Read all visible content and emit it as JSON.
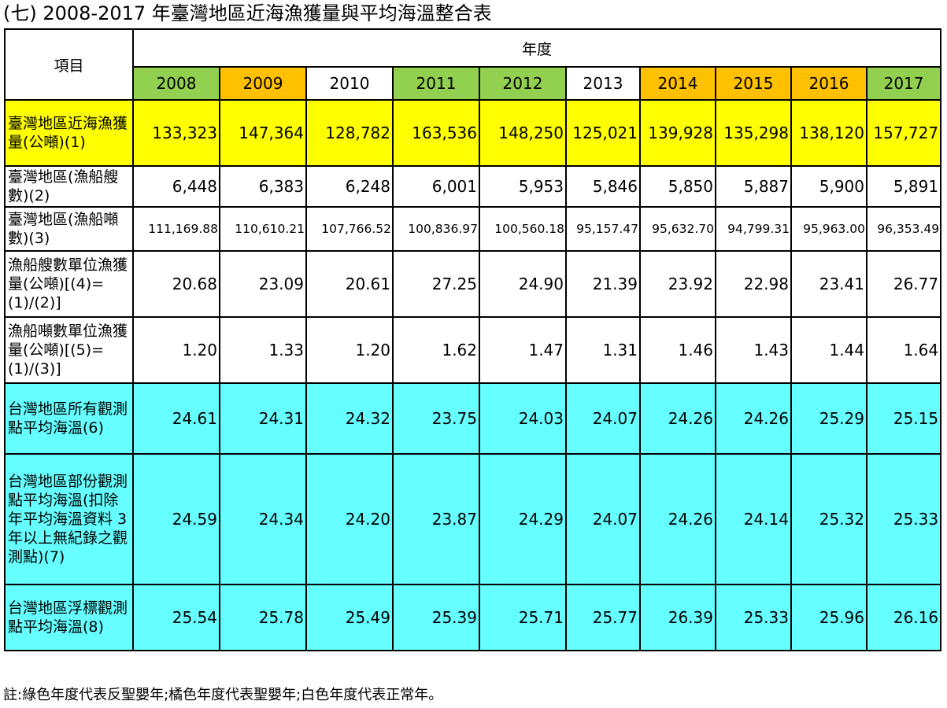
{
  "title": "(七) 2008-2017 年臺灣地區近海漁獲量與平均海溫整合表",
  "header": {
    "item": "項目",
    "year_group": "年度"
  },
  "years": [
    {
      "label": "2008",
      "color": "#92d050"
    },
    {
      "label": "2009",
      "color": "#ffc000"
    },
    {
      "label": "2010",
      "color": "#ffffff"
    },
    {
      "label": "2011",
      "color": "#92d050"
    },
    {
      "label": "2012",
      "color": "#92d050"
    },
    {
      "label": "2013",
      "color": "#ffffff"
    },
    {
      "label": "2014",
      "color": "#ffc000"
    },
    {
      "label": "2015",
      "color": "#ffc000"
    },
    {
      "label": "2016",
      "color": "#ffc000"
    },
    {
      "label": "2017",
      "color": "#92d050"
    }
  ],
  "rows": [
    {
      "label": "臺灣地區近海漁獲量(公噸)(1)",
      "fill": "#ffff00",
      "values": [
        "133,323",
        "147,364",
        "128,782",
        "163,536",
        "148,250",
        "125,021",
        "139,928",
        "135,298",
        "138,120",
        "157,727"
      ]
    },
    {
      "label": "臺灣地區(漁船艘數)(2)",
      "fill": "#ffffff",
      "values": [
        "6,448",
        "6,383",
        "6,248",
        "6,001",
        "5,953",
        "5,846",
        "5,850",
        "5,887",
        "5,900",
        "5,891"
      ]
    },
    {
      "label": "臺灣地區(漁船噸數)(3)",
      "fill": "#ffffff",
      "values": [
        "111,169.88",
        "110,610.21",
        "107,766.52",
        "100,836.97",
        "100,560.18",
        "95,157.47",
        "95,632.70",
        "94,799.31",
        "95,963.00",
        "96,353.49"
      ]
    },
    {
      "label": "漁船艘數單位漁獲量(公噸)[(4)=(1)/(2)]",
      "fill": "#ffffff",
      "values": [
        "20.68",
        "23.09",
        "20.61",
        "27.25",
        "24.90",
        "21.39",
        "23.92",
        "22.98",
        "23.41",
        "26.77"
      ]
    },
    {
      "label": "漁船噸數單位漁獲量(公噸)[(5)=(1)/(3)]",
      "fill": "#ffffff",
      "values": [
        "1.20",
        "1.33",
        "1.20",
        "1.62",
        "1.47",
        "1.31",
        "1.46",
        "1.43",
        "1.44",
        "1.64"
      ]
    },
    {
      "label": "台灣地區所有觀測點平均海溫(6)",
      "fill": "#66ffff",
      "values": [
        "24.61",
        "24.31",
        "24.32",
        "23.75",
        "24.03",
        "24.07",
        "24.26",
        "24.26",
        "25.29",
        "25.15"
      ]
    },
    {
      "label": "台灣地區部份觀測點平均海溫(扣除年平均海溫資料 3 年以上無紀錄之觀測點)(7)",
      "fill": "#66ffff",
      "values": [
        "24.59",
        "24.34",
        "24.20",
        "23.87",
        "24.29",
        "24.07",
        "24.26",
        "24.14",
        "25.32",
        "25.33"
      ]
    },
    {
      "label": "台灣地區浮標觀測點平均海溫(8)",
      "fill": "#66ffff",
      "values": [
        "25.54",
        "25.78",
        "25.49",
        "25.39",
        "25.71",
        "25.77",
        "26.39",
        "25.33",
        "25.96",
        "26.16"
      ]
    }
  ],
  "note": "註:綠色年度代表反聖嬰年;橘色年度代表聖嬰年;白色年度代表正常年。"
}
